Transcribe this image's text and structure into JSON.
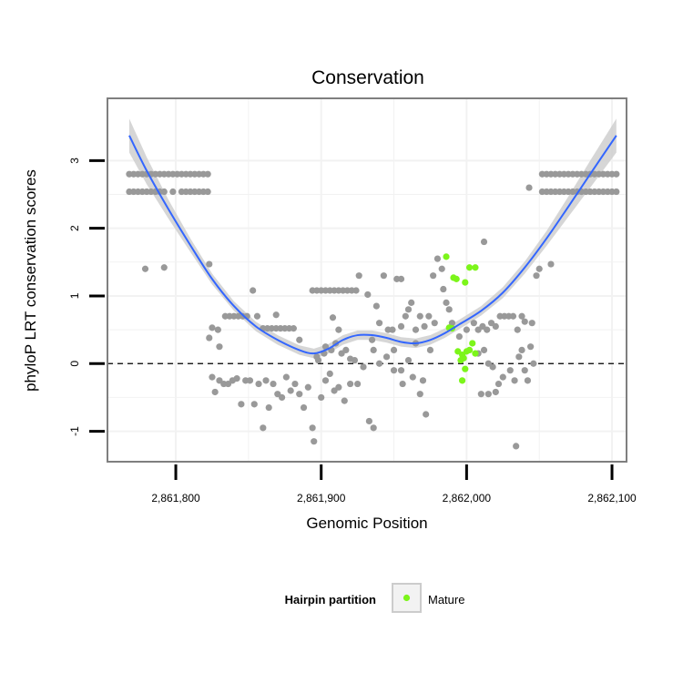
{
  "chart_data": {
    "type": "scatter",
    "title": "Conservation",
    "xlabel": "Genomic Position",
    "ylabel": "phyloP LRT conservation scores",
    "xlim": [
      2861753,
      2862110
    ],
    "ylim": [
      -1.45,
      3.92
    ],
    "xticks": [
      2861800,
      2861900,
      2862000,
      2862100
    ],
    "xtick_labels": [
      "2,861,800",
      "2,861,900",
      "2,862,000",
      "2,862,100"
    ],
    "yticks": [
      -1,
      0,
      1,
      2,
      3
    ],
    "ytick_labels": [
      "-1",
      "0",
      "1",
      "2",
      "3"
    ],
    "grid": true,
    "reference_line": {
      "y": 0,
      "style": "dashed"
    },
    "legend": {
      "title": "Hairpin partition",
      "position": "bottom",
      "entries": [
        {
          "label": "Mature",
          "color": "#7cf51a"
        }
      ]
    },
    "colors": {
      "other": "#999999",
      "mature": "#7cf51a",
      "smooth": "#3366ff",
      "band": "#cccccc",
      "panel_border": "#7f7f7f",
      "grid": "#f2f2f2"
    },
    "series": [
      {
        "name": "Other",
        "color": "#999999",
        "points": [
          [
            2861768,
            2.8
          ],
          [
            2861771,
            2.8
          ],
          [
            2861774,
            2.8
          ],
          [
            2861777,
            2.8
          ],
          [
            2861780,
            2.8
          ],
          [
            2861783,
            2.8
          ],
          [
            2861786,
            2.8
          ],
          [
            2861789,
            2.8
          ],
          [
            2861792,
            2.8
          ],
          [
            2861795,
            2.8
          ],
          [
            2861798,
            2.8
          ],
          [
            2861801,
            2.8
          ],
          [
            2861804,
            2.8
          ],
          [
            2861807,
            2.8
          ],
          [
            2861810,
            2.8
          ],
          [
            2861813,
            2.8
          ],
          [
            2861816,
            2.8
          ],
          [
            2861819,
            2.8
          ],
          [
            2861822,
            2.8
          ],
          [
            2861768,
            2.54
          ],
          [
            2861771,
            2.54
          ],
          [
            2861774,
            2.54
          ],
          [
            2861777,
            2.54
          ],
          [
            2861780,
            2.54
          ],
          [
            2861783,
            2.54
          ],
          [
            2861786,
            2.54
          ],
          [
            2861789,
            2.54
          ],
          [
            2861792,
            2.54
          ],
          [
            2861798,
            2.54
          ],
          [
            2861804,
            2.54
          ],
          [
            2861807,
            2.54
          ],
          [
            2861810,
            2.54
          ],
          [
            2861813,
            2.54
          ],
          [
            2861816,
            2.54
          ],
          [
            2861819,
            2.54
          ],
          [
            2861822,
            2.54
          ],
          [
            2861779,
            1.4
          ],
          [
            2861792,
            1.42
          ],
          [
            2861823,
            1.47
          ],
          [
            2861823,
            0.38
          ],
          [
            2861825,
            0.53
          ],
          [
            2861829,
            0.5
          ],
          [
            2861830,
            0.25
          ],
          [
            2861834,
            0.7
          ],
          [
            2861837,
            0.7
          ],
          [
            2861840,
            0.7
          ],
          [
            2861843,
            0.7
          ],
          [
            2861846,
            0.7
          ],
          [
            2861849,
            0.7
          ],
          [
            2861853,
            1.08
          ],
          [
            2861856,
            0.7
          ],
          [
            2861860,
            0.52
          ],
          [
            2861863,
            0.52
          ],
          [
            2861866,
            0.52
          ],
          [
            2861869,
            0.52
          ],
          [
            2861872,
            0.52
          ],
          [
            2861875,
            0.52
          ],
          [
            2861878,
            0.52
          ],
          [
            2861881,
            0.52
          ],
          [
            2861869,
            0.72
          ],
          [
            2861894,
            1.08
          ],
          [
            2861897,
            1.08
          ],
          [
            2861900,
            1.08
          ],
          [
            2861903,
            1.08
          ],
          [
            2861906,
            1.08
          ],
          [
            2861909,
            1.08
          ],
          [
            2861912,
            1.08
          ],
          [
            2861915,
            1.08
          ],
          [
            2861918,
            1.08
          ],
          [
            2861921,
            1.08
          ],
          [
            2861924,
            1.08
          ],
          [
            2861912,
            0.5
          ],
          [
            2861908,
            0.68
          ],
          [
            2861898,
            0.05
          ],
          [
            2861902,
            0.15
          ],
          [
            2861903,
            0.25
          ],
          [
            2861907,
            0.2
          ],
          [
            2861910,
            0.3
          ],
          [
            2861914,
            0.15
          ],
          [
            2861917,
            0.2
          ],
          [
            2861920,
            0.07
          ],
          [
            2861923,
            0.05
          ],
          [
            2861926,
            1.3
          ],
          [
            2861932,
            1.02
          ],
          [
            2861935,
            0.35
          ],
          [
            2861938,
            0.85
          ],
          [
            2861940,
            0.6
          ],
          [
            2861943,
            1.3
          ],
          [
            2861946,
            0.5
          ],
          [
            2861949,
            0.5
          ],
          [
            2861952,
            1.25
          ],
          [
            2861955,
            1.25
          ],
          [
            2861958,
            0.7
          ],
          [
            2861962,
            0.9
          ],
          [
            2861965,
            0.5
          ],
          [
            2861968,
            0.7
          ],
          [
            2861971,
            0.55
          ],
          [
            2861974,
            0.7
          ],
          [
            2861977,
            1.3
          ],
          [
            2861980,
            1.55
          ],
          [
            2861945,
            0.1
          ],
          [
            2861950,
            0.2
          ],
          [
            2861955,
            -0.1
          ],
          [
            2861960,
            0.05
          ],
          [
            2861965,
            0.3
          ],
          [
            2861970,
            -0.25
          ],
          [
            2861968,
            -0.45
          ],
          [
            2861972,
            -0.75
          ],
          [
            2861975,
            0.2
          ],
          [
            2861978,
            0.6
          ],
          [
            2861960,
            0.8
          ],
          [
            2861983,
            1.4
          ],
          [
            2861984,
            1.1
          ],
          [
            2861986,
            0.9
          ],
          [
            2861988,
            0.8
          ],
          [
            2861990,
            0.6
          ],
          [
            2861995,
            0.4
          ],
          [
            2862000,
            0.5
          ],
          [
            2862005,
            0.6
          ],
          [
            2862008,
            0.5
          ],
          [
            2862011,
            0.55
          ],
          [
            2862014,
            0.5
          ],
          [
            2862017,
            0.6
          ],
          [
            2862020,
            0.55
          ],
          [
            2862023,
            0.7
          ],
          [
            2862026,
            0.7
          ],
          [
            2862029,
            0.7
          ],
          [
            2862032,
            0.7
          ],
          [
            2862035,
            0.5
          ],
          [
            2862038,
            0.7
          ],
          [
            2862040,
            0.62
          ],
          [
            2862045,
            0.6
          ],
          [
            2862012,
            1.8
          ],
          [
            2862008,
            0.15
          ],
          [
            2862012,
            0.2
          ],
          [
            2862015,
            0.0
          ],
          [
            2862018,
            -0.05
          ],
          [
            2862010,
            -0.45
          ],
          [
            2862015,
            -0.45
          ],
          [
            2862020,
            -0.42
          ],
          [
            2862022,
            -0.3
          ],
          [
            2862025,
            -0.2
          ],
          [
            2862030,
            -0.1
          ],
          [
            2862033,
            -0.25
          ],
          [
            2862036,
            0.1
          ],
          [
            2862038,
            0.2
          ],
          [
            2862040,
            -0.1
          ],
          [
            2862042,
            -0.25
          ],
          [
            2862044,
            0.25
          ],
          [
            2862046,
            0.0
          ],
          [
            2862048,
            1.3
          ],
          [
            2862050,
            1.4
          ],
          [
            2862058,
            1.47
          ],
          [
            2862034,
            -1.22
          ],
          [
            2862043,
            2.6
          ],
          [
            2861825,
            -0.2
          ],
          [
            2861827,
            -0.42
          ],
          [
            2861830,
            -0.25
          ],
          [
            2861833,
            -0.3
          ],
          [
            2861836,
            -0.3
          ],
          [
            2861839,
            -0.25
          ],
          [
            2861842,
            -0.22
          ],
          [
            2861845,
            -0.6
          ],
          [
            2861848,
            -0.25
          ],
          [
            2861851,
            -0.25
          ],
          [
            2861854,
            -0.6
          ],
          [
            2861857,
            -0.3
          ],
          [
            2861860,
            -0.95
          ],
          [
            2861862,
            -0.25
          ],
          [
            2861864,
            -0.65
          ],
          [
            2861867,
            -0.3
          ],
          [
            2861870,
            -0.45
          ],
          [
            2861873,
            -0.5
          ],
          [
            2861876,
            -0.2
          ],
          [
            2861879,
            -0.4
          ],
          [
            2861882,
            -0.3
          ],
          [
            2861885,
            -0.45
          ],
          [
            2861888,
            -0.65
          ],
          [
            2861891,
            -0.35
          ],
          [
            2861894,
            -0.95
          ],
          [
            2861895,
            -1.15
          ],
          [
            2861900,
            -0.5
          ],
          [
            2861903,
            -0.25
          ],
          [
            2861906,
            -0.15
          ],
          [
            2861909,
            -0.4
          ],
          [
            2861912,
            -0.35
          ],
          [
            2861916,
            -0.55
          ],
          [
            2861920,
            -0.3
          ],
          [
            2861925,
            -0.3
          ],
          [
            2861929,
            -0.05
          ],
          [
            2861933,
            -0.85
          ],
          [
            2861936,
            -0.95
          ],
          [
            2861885,
            0.35
          ],
          [
            2861897,
            0.1
          ],
          [
            2861936,
            0.2
          ],
          [
            2861940,
            0.0
          ],
          [
            2861950,
            -0.1
          ],
          [
            2861956,
            -0.3
          ],
          [
            2861963,
            -0.2
          ],
          [
            2861955,
            0.55
          ],
          [
            2862052,
            2.8
          ],
          [
            2862055,
            2.8
          ],
          [
            2862058,
            2.8
          ],
          [
            2862061,
            2.8
          ],
          [
            2862064,
            2.8
          ],
          [
            2862067,
            2.8
          ],
          [
            2862070,
            2.8
          ],
          [
            2862073,
            2.8
          ],
          [
            2862076,
            2.8
          ],
          [
            2862079,
            2.8
          ],
          [
            2862082,
            2.8
          ],
          [
            2862085,
            2.8
          ],
          [
            2862088,
            2.8
          ],
          [
            2862091,
            2.8
          ],
          [
            2862094,
            2.8
          ],
          [
            2862097,
            2.8
          ],
          [
            2862100,
            2.8
          ],
          [
            2862103,
            2.8
          ],
          [
            2862052,
            2.54
          ],
          [
            2862055,
            2.54
          ],
          [
            2862058,
            2.54
          ],
          [
            2862061,
            2.54
          ],
          [
            2862064,
            2.54
          ],
          [
            2862067,
            2.54
          ],
          [
            2862070,
            2.54
          ],
          [
            2862073,
            2.54
          ],
          [
            2862076,
            2.54
          ],
          [
            2862079,
            2.54
          ],
          [
            2862082,
            2.54
          ],
          [
            2862085,
            2.54
          ],
          [
            2862088,
            2.54
          ],
          [
            2862091,
            2.54
          ],
          [
            2862094,
            2.54
          ],
          [
            2862097,
            2.54
          ],
          [
            2862100,
            2.54
          ],
          [
            2862103,
            2.54
          ]
        ]
      },
      {
        "name": "Mature",
        "color": "#7cf51a",
        "points": [
          [
            2861986,
            1.58
          ],
          [
            2861991,
            1.27
          ],
          [
            2861993,
            1.25
          ],
          [
            2861999,
            1.2
          ],
          [
            2862002,
            1.42
          ],
          [
            2862006,
            1.42
          ],
          [
            2861988,
            0.53
          ],
          [
            2861990,
            0.52
          ],
          [
            2861994,
            0.18
          ],
          [
            2861997,
            0.13
          ],
          [
            2861998,
            0.08
          ],
          [
            2862000,
            0.18
          ],
          [
            2862002,
            0.2
          ],
          [
            2862004,
            0.3
          ],
          [
            2862006,
            0.15
          ],
          [
            2861996,
            0.05
          ],
          [
            2861999,
            -0.08
          ],
          [
            2861997,
            -0.25
          ]
        ]
      }
    ],
    "smooth": {
      "x": [
        2861768,
        2861780,
        2861795,
        2861810,
        2861825,
        2861840,
        2861855,
        2861870,
        2861885,
        2861895,
        2861905,
        2861915,
        2861925,
        2861935,
        2861945,
        2861955,
        2861965,
        2861975,
        2861985,
        2861995,
        2862010,
        2862025,
        2862040,
        2862055,
        2862070,
        2862085,
        2862103
      ],
      "y": [
        3.37,
        2.85,
        2.28,
        1.75,
        1.25,
        0.85,
        0.55,
        0.35,
        0.2,
        0.15,
        0.22,
        0.35,
        0.42,
        0.42,
        0.38,
        0.32,
        0.3,
        0.35,
        0.45,
        0.58,
        0.78,
        1.05,
        1.42,
        1.85,
        2.32,
        2.8,
        3.37
      ],
      "band": [
        0.25,
        0.2,
        0.14,
        0.1,
        0.08,
        0.07,
        0.07,
        0.07,
        0.07,
        0.07,
        0.07,
        0.07,
        0.07,
        0.07,
        0.07,
        0.07,
        0.07,
        0.07,
        0.07,
        0.07,
        0.07,
        0.08,
        0.09,
        0.11,
        0.15,
        0.2,
        0.25
      ]
    }
  }
}
